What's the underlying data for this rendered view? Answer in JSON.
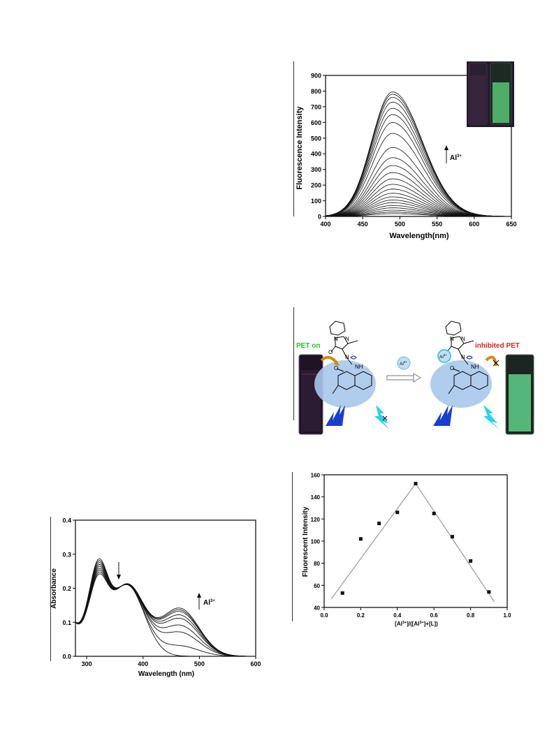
{
  "charts": {
    "fluorescence": {
      "ylabel": "Fluorescence Intensity",
      "xlabel": "Wavelength(nm)",
      "xticks": [
        "400",
        "450",
        "500",
        "550",
        "600",
        "650"
      ],
      "yticks": [
        "0",
        "100",
        "200",
        "300",
        "400",
        "500",
        "600",
        "700",
        "800",
        "900"
      ],
      "annotation_label": "Al",
      "annotation_sup": "3+"
    },
    "scheme": {
      "left_label": "PET on",
      "right_label": "inhibited PET",
      "ion_label": "Al",
      "ion_sup": "3+",
      "atom_n1": "N",
      "atom_n2": "N",
      "atom_nh": "NH",
      "atom_o1": "O",
      "atom_o2": "O",
      "atom_n3": "N",
      "atom_n1r": "N",
      "atom_n2r": "N",
      "atom_nhr": "NH",
      "atom_o1r": "O",
      "atom_o2r": "O",
      "atom_n3r": "N"
    },
    "job": {
      "ylabel": "Fluorescent Intensity",
      "xlabel_main": "[Al",
      "xlabel_sup1": "3+",
      "xlabel_mid": "]/([Al",
      "xlabel_sup2": "3+",
      "xlabel_end": "]+[L])",
      "xticks": [
        "0.0",
        "0.2",
        "0.4",
        "0.6",
        "0.8",
        "1.0"
      ],
      "yticks": [
        "40",
        "60",
        "80",
        "100",
        "120",
        "140",
        "160"
      ]
    },
    "absorbance": {
      "ylabel": "Absorbance",
      "xlabel": "Wavelength (nm)",
      "xticks": [
        "300",
        "400",
        "500",
        "600"
      ],
      "yticks": [
        "0.0",
        "0.1",
        "0.2",
        "0.3",
        "0.4"
      ],
      "annotation_label": "Al",
      "annotation_sup": "3+"
    }
  },
  "chart_data": [
    {
      "type": "line",
      "x_range": [
        400,
        650
      ],
      "ylim": [
        0,
        900
      ],
      "peak_wavelength": 490,
      "series_peaks": [
        18,
        28,
        40,
        55,
        70,
        88,
        105,
        125,
        148,
        175,
        205,
        240,
        280,
        325,
        375,
        440,
        530,
        600,
        650,
        690,
        730,
        760,
        780,
        795
      ],
      "colors": {
        "line": "#111111"
      }
    },
    {
      "type": "scatter",
      "x": [
        0.1,
        0.2,
        0.3,
        0.4,
        0.5,
        0.6,
        0.7,
        0.8,
        0.9
      ],
      "y": [
        53,
        102,
        116,
        126,
        152,
        125,
        104,
        82,
        54
      ],
      "xlim": [
        0.0,
        1.0
      ],
      "ylim": [
        40,
        160
      ],
      "fit_lines": [
        [
          [
            0.04,
            48
          ],
          [
            0.5,
            152
          ]
        ],
        [
          [
            0.5,
            152
          ],
          [
            0.93,
            45
          ]
        ]
      ],
      "colors": {
        "points": "#111111",
        "fit": "#999999"
      }
    },
    {
      "type": "line",
      "x_range": [
        280,
        600
      ],
      "ylim": [
        0.0,
        0.4
      ],
      "series_band_heights": [
        0.0,
        0.03,
        0.07,
        0.09,
        0.11,
        0.12,
        0.13,
        0.135,
        0.14
      ],
      "colors": {
        "line": "#111111"
      }
    }
  ]
}
